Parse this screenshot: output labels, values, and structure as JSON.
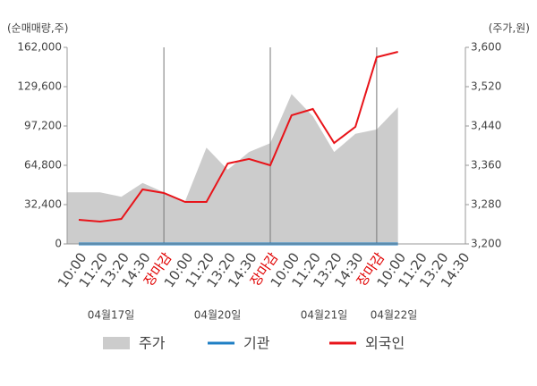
{
  "chart_data": {
    "type": "line",
    "y_axis_label": "(순매매량,주)",
    "y2_axis_label": "(주가,원)",
    "categories": [
      "10:00",
      "11:20",
      "13:20",
      "14:30",
      "장마감",
      "10:00",
      "11:20",
      "13:20",
      "14:30",
      "장마감",
      "10:00",
      "11:20",
      "13:20",
      "14:30",
      "장마감",
      "10:00",
      "11:20",
      "13:20",
      "14:30"
    ],
    "date_labels": [
      "04월17일",
      "04월20일",
      "04월21일",
      "04월22일"
    ],
    "day_separators": [
      4,
      9,
      14
    ],
    "separator_color": "#777777",
    "close_label_color": "#e00000",
    "series": [
      {
        "name": "주가",
        "type": "area",
        "axis": "y2",
        "color": "#cccccc",
        "values": [
          3305,
          3305,
          3296,
          3324,
          3305,
          3287,
          3396,
          3351,
          3387,
          3405,
          3505,
          3460,
          3387,
          3424,
          3433,
          3478,
          null,
          null,
          null
        ]
      },
      {
        "name": "기관",
        "type": "line",
        "color": "#1f7fc4",
        "values": [
          0,
          0,
          0,
          0,
          0,
          0,
          0,
          0,
          0,
          0,
          0,
          0,
          0,
          0,
          0,
          0,
          null,
          null,
          null
        ]
      },
      {
        "name": "외국인",
        "type": "line",
        "color": "#e8141a",
        "values": [
          19900,
          18400,
          20600,
          44900,
          42000,
          34600,
          34600,
          66300,
          70000,
          64800,
          106000,
          111200,
          83200,
          96500,
          153900,
          158300,
          null,
          null,
          null
        ]
      }
    ],
    "ylim": [
      0,
      162000
    ],
    "yticks": [
      0,
      {
        "value": 32400,
        "label": "32,400"
      },
      {
        "value": 64800,
        "label": "64,800"
      },
      {
        "value": 97200,
        "label": "97,200"
      },
      {
        "value": 129600,
        "label": "129,600"
      },
      {
        "value": 162000,
        "label": "162,000"
      }
    ],
    "y2lim": [
      3200,
      3600
    ],
    "y2ticks": [
      {
        "value": 3200,
        "label": "3,200"
      },
      {
        "value": 3280,
        "label": "3,280"
      },
      {
        "value": 3360,
        "label": "3,360"
      },
      {
        "value": 3440,
        "label": "3,440"
      },
      {
        "value": 3520,
        "label": "3,520"
      },
      {
        "value": 3600,
        "label": "3,600"
      }
    ],
    "grid": false,
    "legend": "bottom"
  }
}
